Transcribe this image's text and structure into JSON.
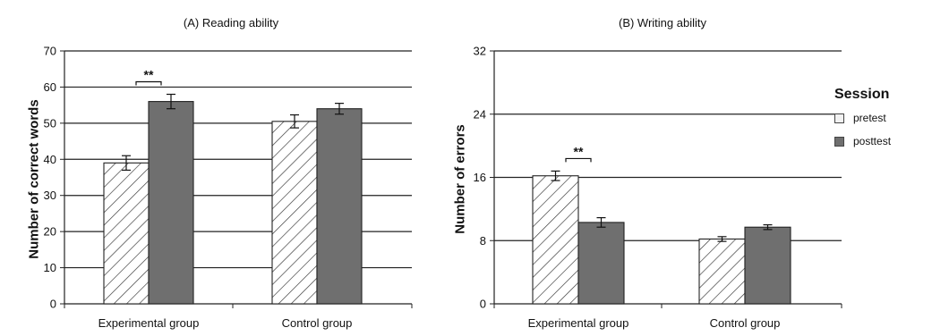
{
  "chart_data": [
    {
      "type": "bar",
      "title": "(A) Reading ability",
      "ylabel": "Number of correct words",
      "xlabel": "",
      "categories": [
        "Experimental group",
        "Control group"
      ],
      "ylim": [
        0,
        70
      ],
      "yticks": [
        0,
        10,
        20,
        30,
        40,
        50,
        60,
        70
      ],
      "grid": true,
      "series": [
        {
          "name": "pretest",
          "values": [
            39,
            50.5
          ],
          "errors": [
            2,
            1.8
          ]
        },
        {
          "name": "posttest",
          "values": [
            56,
            54
          ],
          "errors": [
            2,
            1.5
          ]
        }
      ],
      "annotations": [
        {
          "text": "**",
          "category": 0
        }
      ]
    },
    {
      "type": "bar",
      "title": "(B) Writing ability",
      "ylabel": "Number of errors",
      "xlabel": "",
      "categories": [
        "Experimental group",
        "Control group"
      ],
      "ylim": [
        0,
        32
      ],
      "yticks": [
        0,
        8,
        16,
        24,
        32
      ],
      "grid": true,
      "series": [
        {
          "name": "pretest",
          "values": [
            16.2,
            8.2
          ],
          "errors": [
            0.6,
            0.3
          ]
        },
        {
          "name": "posttest",
          "values": [
            10.3,
            9.7
          ],
          "errors": [
            0.6,
            0.3
          ]
        }
      ],
      "annotations": [
        {
          "text": "**",
          "category": 0
        }
      ]
    }
  ],
  "legend": {
    "title": "Session",
    "items": [
      {
        "label": "pretest",
        "pattern": "hatch",
        "color": "#ffffff"
      },
      {
        "label": "posttest",
        "pattern": "solid",
        "color": "#6f6f6f"
      }
    ]
  },
  "colors": {
    "pretest_fill": "#ffffff",
    "posttest_fill": "#6f6f6f",
    "hatch": "#333333",
    "grid": "#222222"
  }
}
